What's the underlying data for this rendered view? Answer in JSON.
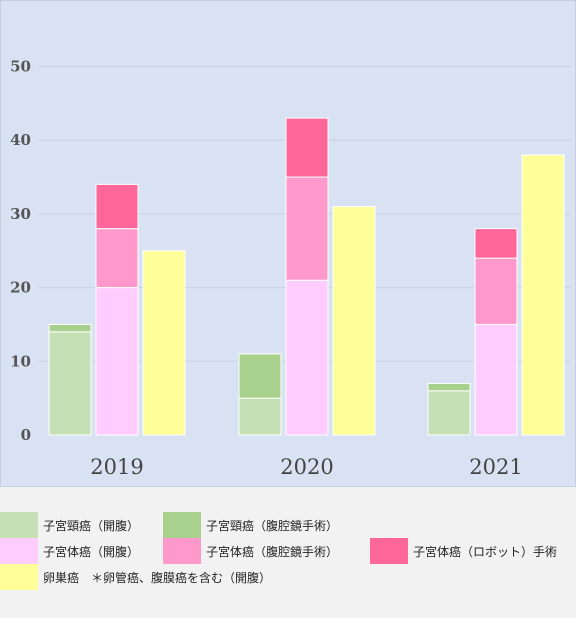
{
  "chart_data": {
    "type": "bar",
    "stacked_groups": true,
    "categories": [
      "2019",
      "2020",
      "2021"
    ],
    "yticks": [
      0,
      10,
      20,
      30,
      40,
      50
    ],
    "ylim": [
      0,
      55
    ],
    "grid": true,
    "legend_position": "bottom",
    "series": [
      {
        "name": "子宮頸癌（開腹）",
        "stack": "cervical",
        "color": "#c5e0b4",
        "values": [
          14,
          5,
          6
        ]
      },
      {
        "name": "子宮頸癌（腹腔鏡手術）",
        "stack": "cervical",
        "color": "#a9d18e",
        "values": [
          1,
          6,
          1
        ]
      },
      {
        "name": "子宮体癌（開腹）",
        "stack": "endometrial",
        "color": "#ffccff",
        "values": [
          20,
          21,
          15
        ]
      },
      {
        "name": "子宮体癌（腹腔鏡手術）",
        "stack": "endometrial",
        "color": "#ff99cc",
        "values": [
          8,
          14,
          9
        ]
      },
      {
        "name": "子宮体癌（ロボット）手術",
        "stack": "endometrial",
        "color": "#ff6699",
        "values": [
          6,
          8,
          4
        ]
      },
      {
        "name": "卵巣癌　＊卵管癌、腹膜癌を含む（開腹）",
        "stack": "ovarian",
        "color": "#ffff99",
        "values": [
          25,
          31,
          38
        ]
      }
    ]
  }
}
